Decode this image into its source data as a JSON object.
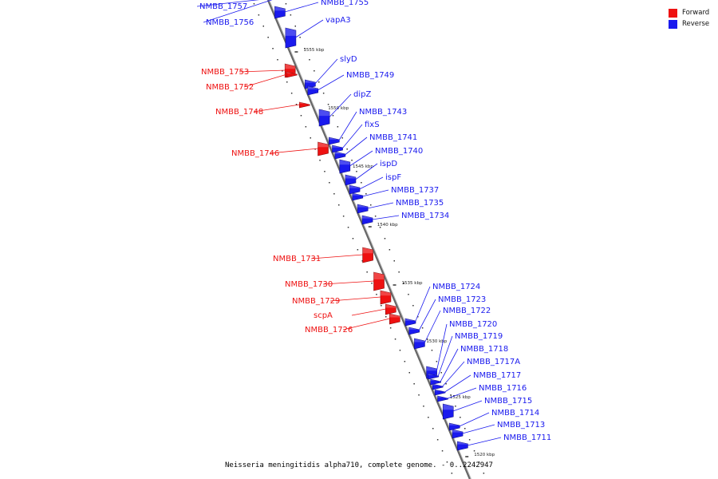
{
  "legend": {
    "forward_label": "Forward",
    "forward_color": "#ee1111",
    "reverse_label": "Reverse",
    "reverse_color": "#1a1aee"
  },
  "caption": "Neisseria meningitidis alpha710, complete genome. - 0..2242947",
  "scale_marks": [
    {
      "label": "1555 kbp"
    },
    {
      "label": "1550 kbp"
    },
    {
      "label": "1545 kbp"
    },
    {
      "label": "1540 kbp"
    },
    {
      "label": "1535 kbp"
    },
    {
      "label": "1530 kbp"
    },
    {
      "label": "1525 kbp"
    },
    {
      "label": "1520 kbp"
    }
  ],
  "genes": [
    {
      "name": "NMBB_1757",
      "strand": "reverse"
    },
    {
      "name": "NMBB_1756",
      "strand": "reverse"
    },
    {
      "name": "NMBB_1755",
      "strand": "reverse"
    },
    {
      "name": "vapA3",
      "strand": "reverse"
    },
    {
      "name": "slyD",
      "strand": "reverse"
    },
    {
      "name": "NMBB_1749",
      "strand": "reverse"
    },
    {
      "name": "dipZ",
      "strand": "reverse"
    },
    {
      "name": "NMBB_1743",
      "strand": "reverse"
    },
    {
      "name": "fixS",
      "strand": "reverse"
    },
    {
      "name": "NMBB_1741",
      "strand": "reverse"
    },
    {
      "name": "NMBB_1740",
      "strand": "reverse"
    },
    {
      "name": "ispD",
      "strand": "reverse"
    },
    {
      "name": "ispF",
      "strand": "reverse"
    },
    {
      "name": "NMBB_1737",
      "strand": "reverse"
    },
    {
      "name": "NMBB_1735",
      "strand": "reverse"
    },
    {
      "name": "NMBB_1734",
      "strand": "reverse"
    },
    {
      "name": "NMBB_1724",
      "strand": "reverse"
    },
    {
      "name": "NMBB_1723",
      "strand": "reverse"
    },
    {
      "name": "NMBB_1722",
      "strand": "reverse"
    },
    {
      "name": "NMBB_1720",
      "strand": "reverse"
    },
    {
      "name": "NMBB_1719",
      "strand": "reverse"
    },
    {
      "name": "NMBB_1718",
      "strand": "reverse"
    },
    {
      "name": "NMBB_1717A",
      "strand": "reverse"
    },
    {
      "name": "NMBB_1717",
      "strand": "reverse"
    },
    {
      "name": "NMBB_1716",
      "strand": "reverse"
    },
    {
      "name": "NMBB_1715",
      "strand": "reverse"
    },
    {
      "name": "NMBB_1714",
      "strand": "reverse"
    },
    {
      "name": "NMBB_1713",
      "strand": "reverse"
    },
    {
      "name": "NMBB_1711",
      "strand": "reverse"
    },
    {
      "name": "NMBB_1753",
      "strand": "forward"
    },
    {
      "name": "NMBB_1752",
      "strand": "forward"
    },
    {
      "name": "NMBB_1748",
      "strand": "forward"
    },
    {
      "name": "NMBB_1746",
      "strand": "forward"
    },
    {
      "name": "NMBB_1731",
      "strand": "forward"
    },
    {
      "name": "NMBB_1730",
      "strand": "forward"
    },
    {
      "name": "NMBB_1729",
      "strand": "forward"
    },
    {
      "name": "scpA",
      "strand": "forward"
    },
    {
      "name": "NMBB_1726",
      "strand": "forward"
    }
  ]
}
